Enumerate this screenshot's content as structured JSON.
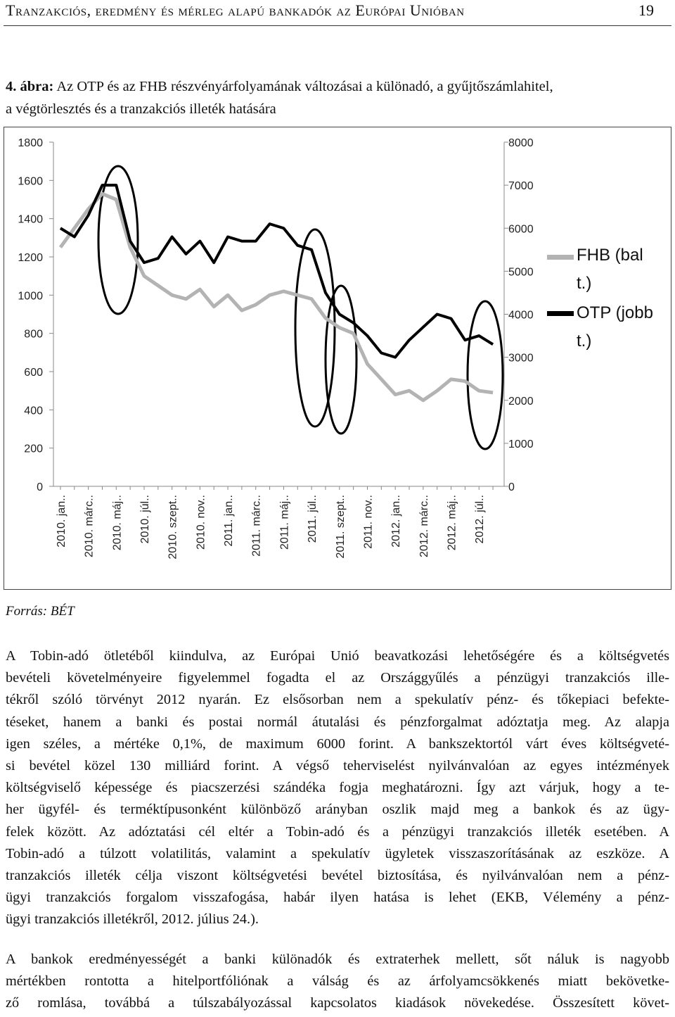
{
  "header": {
    "title": "Tranzakciós, eredmény és mérleg alapú bankadók az Európai Unióban",
    "page": "19"
  },
  "figure": {
    "label": "4. ábra:",
    "caption_lines": [
      "Az OTP és az FHB részvényárfolyamának változásai a különadó, a gyűjtőszámlahitel,",
      "a végtörlesztés és a tranzakciós illeték hatására"
    ],
    "source": "Forrás: BÉT"
  },
  "chart_data": {
    "type": "line",
    "categories": [
      "2010. jan..",
      null,
      "2010. márc..",
      null,
      "2010. máj..",
      null,
      "2010. júl..",
      null,
      "2010. szept..",
      null,
      "2010. nov..",
      null,
      "2011. jan..",
      null,
      "2011. márc..",
      null,
      "2011. máj..",
      null,
      "2011. júl..",
      null,
      "2011. szept..",
      null,
      "2011. nov..",
      null,
      "2012. jan..",
      null,
      "2012. márc..",
      null,
      "2012. máj..",
      null,
      "2012. júl..",
      null
    ],
    "series": [
      {
        "name": "FHB (bal t.)",
        "color": "#b3b3b3",
        "axis": "y",
        "values": [
          1250,
          1350,
          1450,
          1530,
          1500,
          1250,
          1100,
          1050,
          1000,
          980,
          1030,
          940,
          1000,
          920,
          950,
          1000,
          1020,
          1000,
          980,
          880,
          830,
          800,
          640,
          560,
          480,
          500,
          450,
          500,
          560,
          550,
          500,
          490
        ]
      },
      {
        "name": "OTP (jobb t.)",
        "color": "#000000",
        "axis": "y2",
        "values": [
          6000,
          5800,
          6300,
          7000,
          7000,
          5700,
          5200,
          5300,
          5800,
          5400,
          5700,
          5200,
          5800,
          5700,
          5700,
          6100,
          6000,
          5600,
          5500,
          4500,
          4000,
          3800,
          3500,
          3100,
          3000,
          3400,
          3700,
          4000,
          3900,
          3400,
          3500,
          3300
        ]
      }
    ],
    "ylim": [
      0,
      1800
    ],
    "yticks": [
      0,
      200,
      400,
      600,
      800,
      1000,
      1200,
      1400,
      1600,
      1800
    ],
    "y2lim": [
      0,
      8000
    ],
    "y2ticks": [
      0,
      1000,
      2000,
      3000,
      4000,
      5000,
      6000,
      7000,
      8000
    ]
  },
  "paragraphs": [
    [
      "A Tobin-adó ötletéből kiindulva, az Európai Unió beavatkozási lehetőségére és a költségvetés",
      "bevételi követelményeire figyelemmel fogadta el az Országgyűlés a pénzügyi tranzakciós ille-",
      "tékről szóló törvényt 2012 nyarán. Ez elsősorban nem a spekulatív pénz- és tőkepiaci befekte-",
      "téseket, hanem a banki és postai normál átutalási és pénzforgalmat adóztatja meg. Az alapja",
      "igen széles, a mértéke 0,1%, de maximum 6000 forint. A bankszektortól várt éves költségveté-",
      "si bevétel közel 130 milliárd forint. A végső teherviselést nyilvánvalóan az egyes intézmények",
      "költségviselő képessége és piacszerzési szándéka fogja meghatározni. Így azt várjuk, hogy a te-",
      "her ügyfél- és terméktípusonként különböző arányban oszlik majd meg a bankok és az ügy-",
      "felek között. Az adóztatási cél eltér a Tobin-adó és a pénzügyi tranzakciós illeték esetében. A",
      "Tobin-adó a túlzott volatilitás, valamint a spekulatív ügyletek visszaszorításának az eszköze. A",
      "tranzakciós illeték célja viszont költségvetési bevétel biztosítása, és nyilvánvalóan nem a pénz-",
      "ügyi tranzakciós forgalom visszafogása, habár ilyen hatása is lehet (EKB, Vélemény a pénz-",
      "ügyi tranzakciós illetékről, 2012. július 24.)."
    ],
    [
      "A bankok eredményességét a banki különadók és extraterhek mellett, sőt náluk is nagyobb",
      "mértékben rontotta a hitelportfóliónak a válság és az árfolyamcsökkenés miatt bekövetke-",
      "ző romlása, továbbá a túlszabályozással kapcsolatos kiadások növekedése. Összesített követ-"
    ]
  ]
}
